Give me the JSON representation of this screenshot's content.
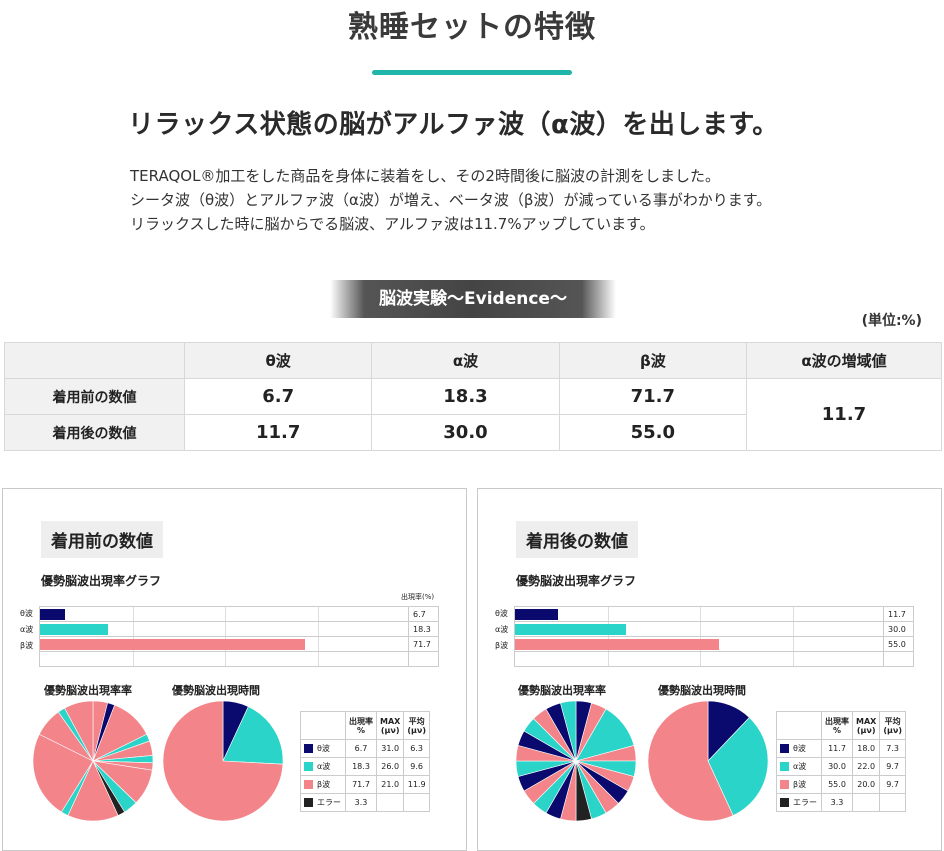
{
  "page": {
    "title": "熟睡セットの特徴",
    "subtitle": "リラックス状態の脳がアルファ波（α波）を出します。",
    "desc": [
      "TERAQOL®加工をした商品を身体に装着をし、その2時間後に脳波の計測をしました。",
      "シータ波（θ波）とアルファ波（α波）が増え、ベータ波（β波）が減っている事がわかります。",
      "リラックスした時に脳からでる脳波、アルファ波は11.7%アップしています。"
    ],
    "banner": "脳波実験〜Evidence〜",
    "unit": "(単位:%)"
  },
  "table": {
    "headers": [
      "",
      "θ波",
      "α波",
      "β波",
      "α波の増域値"
    ],
    "rows": [
      {
        "label": "着用前の数値",
        "values": [
          "6.7",
          "18.3",
          "71.7"
        ]
      },
      {
        "label": "着用後の数値",
        "values": [
          "11.7",
          "30.0",
          "55.0"
        ]
      }
    ],
    "alpha_increase": "11.7"
  },
  "colors": {
    "theta": "#0a0a6e",
    "alpha": "#2ad4c8",
    "beta": "#f3858a",
    "error": "#222222"
  },
  "panels": [
    {
      "tag": "着用前の数値",
      "graph_title": "優勢脳波出現率グラフ",
      "rate_head": "出現率(%)",
      "pie_title_1": "優勢脳波出現率率",
      "pie_title_2": "優勢脳波出現時間",
      "legend_head": [
        "出現率\n%",
        "MAX\n(μν)",
        "平均\n(μν)"
      ],
      "legend_rows": [
        {
          "name": "θ波",
          "color": "theta",
          "cells": [
            "6.7",
            "31.0",
            "6.3"
          ]
        },
        {
          "name": "α波",
          "color": "alpha",
          "cells": [
            "18.3",
            "26.0",
            "9.6"
          ]
        },
        {
          "name": "β波",
          "color": "beta",
          "cells": [
            "71.7",
            "21.0",
            "11.9"
          ]
        },
        {
          "name": "エラー",
          "color": "error",
          "cells": [
            "3.3",
            "",
            ""
          ]
        }
      ]
    },
    {
      "tag": "着用後の数値",
      "graph_title": "優勢脳波出現率グラフ",
      "rate_head": "",
      "pie_title_1": "優勢脳波出現率率",
      "pie_title_2": "優勢脳波出現時間",
      "legend_head": [
        "出現率\n%",
        "MAX\n(μν)",
        "平均\n(μν)"
      ],
      "legend_rows": [
        {
          "name": "θ波",
          "color": "theta",
          "cells": [
            "11.7",
            "18.0",
            "7.3"
          ]
        },
        {
          "name": "α波",
          "color": "alpha",
          "cells": [
            "30.0",
            "22.0",
            "9.7"
          ]
        },
        {
          "name": "β波",
          "color": "beta",
          "cells": [
            "55.0",
            "20.0",
            "9.7"
          ]
        },
        {
          "name": "エラー",
          "color": "error",
          "cells": [
            "3.3",
            "",
            ""
          ]
        }
      ]
    }
  ],
  "chart_data": [
    {
      "type": "bar",
      "title": "優勢脳波出現率グラフ",
      "categories": [
        "θ波",
        "α波",
        "β波"
      ],
      "values": [
        6.7,
        18.3,
        71.7
      ],
      "ylim": [
        0,
        100
      ]
    },
    {
      "type": "pie",
      "title": "優勢脳波出現時間",
      "categories": [
        "θ波",
        "α波",
        "β波"
      ],
      "values": [
        6.7,
        18.3,
        71.7
      ]
    },
    {
      "type": "bar",
      "title": "優勢脳波出現率グラフ",
      "categories": [
        "θ波",
        "α波",
        "β波"
      ],
      "values": [
        11.7,
        30.0,
        55.0
      ],
      "ylim": [
        0,
        100
      ]
    },
    {
      "type": "pie",
      "title": "優勢脳波出現時間",
      "categories": [
        "θ波",
        "α波",
        "β波"
      ],
      "values": [
        11.7,
        30.0,
        55.0
      ]
    }
  ]
}
